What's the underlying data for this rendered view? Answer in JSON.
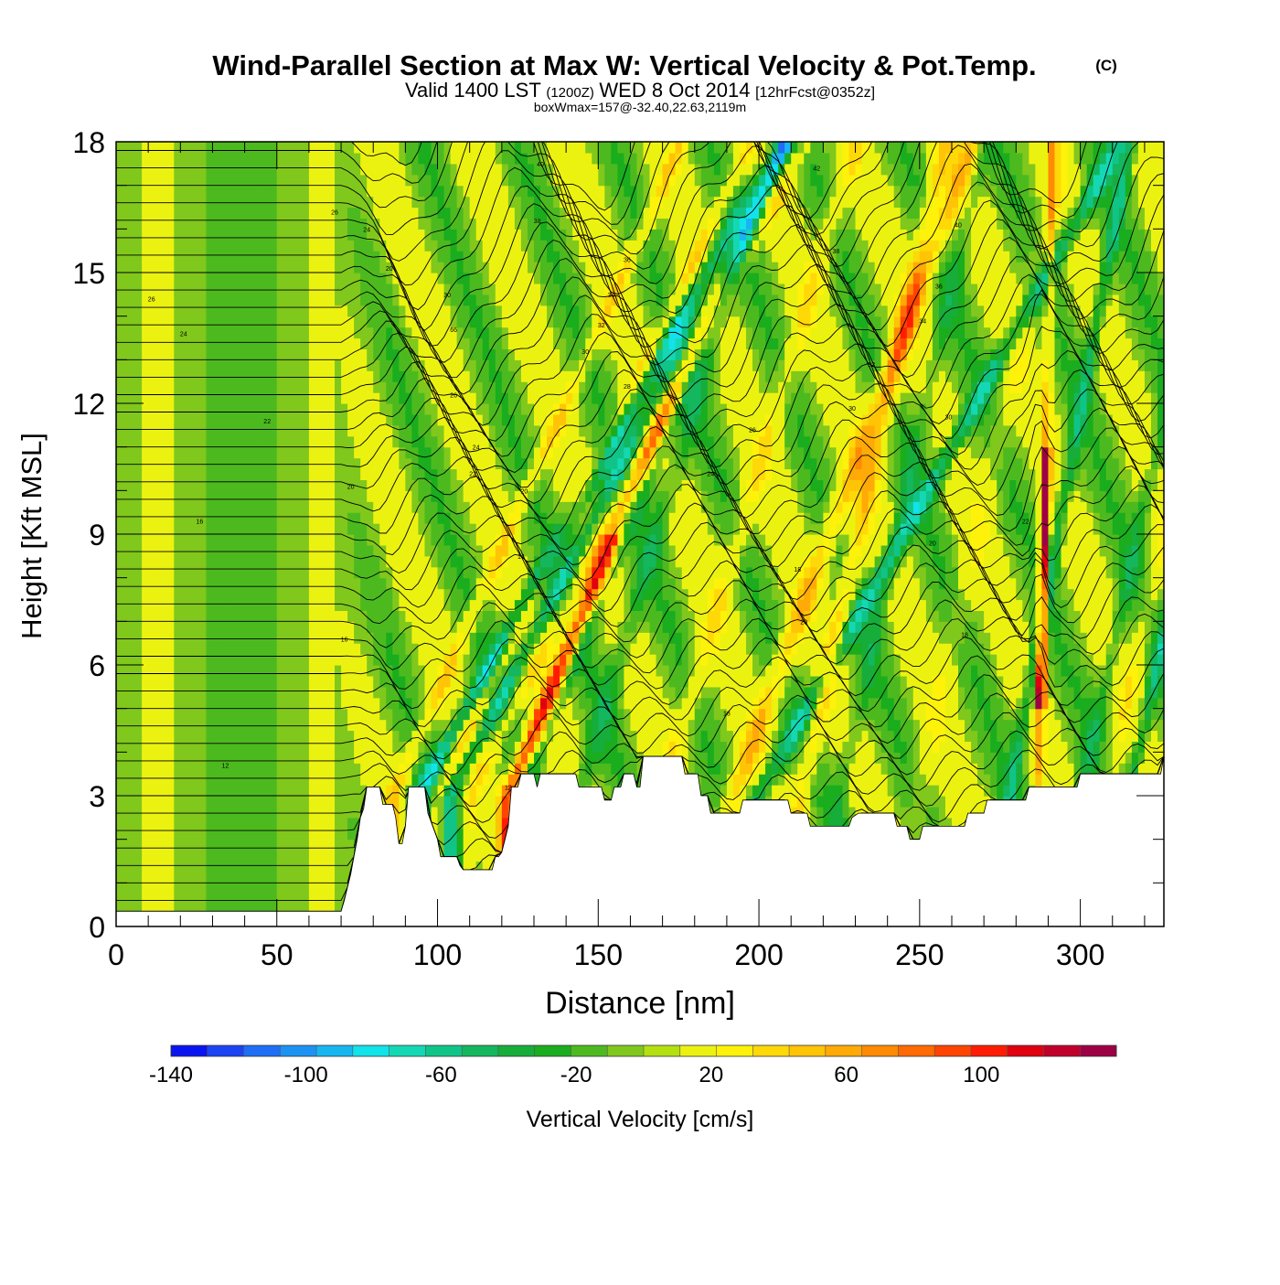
{
  "chart_data": {
    "type": "heatmap",
    "title": "Wind-Parallel Section at Max W: Vertical Velocity & Pot.Temp.",
    "title_mark": "(C)",
    "subtitle_parts": [
      "Valid 1400 LST",
      "(1200Z)",
      "WED 8 Oct 2014",
      "[12hrFcst@0352z]"
    ],
    "subtitle2": "boxWmax=157@-32.40,22.63,2119m",
    "xlabel": "Distance [nm]",
    "ylabel": "Height [Kft MSL]",
    "xlim": [
      0,
      326
    ],
    "ylim": [
      0,
      18
    ],
    "x_ticks": [
      0,
      50,
      100,
      150,
      200,
      250,
      300
    ],
    "y_ticks": [
      0,
      3,
      6,
      9,
      12,
      15,
      18
    ],
    "grid": false,
    "colorbar": {
      "label": "Vertical Velocity [cm/s]",
      "range": [
        -140,
        140
      ],
      "step": 10,
      "tick_labels": [
        "-140",
        "-100",
        "-60",
        "-20",
        "20",
        "60",
        "100"
      ],
      "tick_values": [
        -140,
        -100,
        -60,
        -20,
        20,
        60,
        100
      ],
      "colors": [
        "#0a14f0",
        "#1a44f4",
        "#1e6ef6",
        "#1c92f2",
        "#18b6f0",
        "#12e2ea",
        "#14d8b4",
        "#10c488",
        "#14b65e",
        "#16ad3a",
        "#1aad1e",
        "#4cba1e",
        "#80c81c",
        "#b4e010",
        "#ecf210",
        "#fff20a",
        "#ffd808",
        "#ffc406",
        "#ffaa06",
        "#ff8a04",
        "#ff6a02",
        "#ff4402",
        "#ff1c02",
        "#e00010",
        "#c0002a",
        "#9e0044"
      ]
    },
    "terrain": [
      [
        0,
        0.35
      ],
      [
        68,
        0.35
      ],
      [
        70,
        0.35
      ],
      [
        71,
        0.6
      ],
      [
        72,
        0.9
      ],
      [
        73,
        1.2
      ],
      [
        74,
        1.6
      ],
      [
        75,
        2.0
      ],
      [
        76,
        2.5
      ],
      [
        77,
        2.7
      ],
      [
        78,
        3.2
      ],
      [
        82,
        3.2
      ],
      [
        83,
        2.8
      ],
      [
        86,
        2.8
      ],
      [
        87,
        2.5
      ],
      [
        88,
        1.9
      ],
      [
        89,
        1.9
      ],
      [
        90,
        2.3
      ],
      [
        91,
        3.2
      ],
      [
        96,
        3.2
      ],
      [
        97,
        2.6
      ],
      [
        98,
        2.4
      ],
      [
        100,
        2.0
      ],
      [
        101,
        1.6
      ],
      [
        106,
        1.6
      ],
      [
        107,
        1.4
      ],
      [
        108,
        1.3
      ],
      [
        117,
        1.3
      ],
      [
        118,
        1.6
      ],
      [
        119,
        1.6
      ],
      [
        120,
        1.7
      ],
      [
        121,
        2.0
      ],
      [
        122,
        2.3
      ],
      [
        123,
        3.2
      ],
      [
        125,
        3.2
      ],
      [
        126,
        3.5
      ],
      [
        130,
        3.5
      ],
      [
        131,
        3.2
      ],
      [
        132,
        3.5
      ],
      [
        143,
        3.5
      ],
      [
        144,
        3.2
      ],
      [
        151,
        3.2
      ],
      [
        152,
        2.9
      ],
      [
        154,
        2.9
      ],
      [
        155,
        3.2
      ],
      [
        157,
        3.2
      ],
      [
        158,
        3.5
      ],
      [
        161,
        3.5
      ],
      [
        162,
        3.2
      ],
      [
        163,
        3.2
      ],
      [
        164,
        3.9
      ],
      [
        176,
        3.9
      ],
      [
        177,
        3.5
      ],
      [
        181,
        3.5
      ],
      [
        182,
        3.0
      ],
      [
        184,
        3.0
      ],
      [
        185,
        2.6
      ],
      [
        194,
        2.6
      ],
      [
        195,
        2.9
      ],
      [
        209,
        2.9
      ],
      [
        210,
        2.6
      ],
      [
        215,
        2.6
      ],
      [
        216,
        2.3
      ],
      [
        228,
        2.3
      ],
      [
        229,
        2.5
      ],
      [
        231,
        2.6
      ],
      [
        242,
        2.6
      ],
      [
        243,
        2.3
      ],
      [
        246,
        2.3
      ],
      [
        247,
        2.0
      ],
      [
        250,
        2.0
      ],
      [
        251,
        2.3
      ],
      [
        264,
        2.3
      ],
      [
        265,
        2.6
      ],
      [
        270,
        2.6
      ],
      [
        271,
        2.9
      ],
      [
        283,
        2.9
      ],
      [
        284,
        3.2
      ],
      [
        299,
        3.2
      ],
      [
        300,
        3.5
      ],
      [
        325,
        3.5
      ],
      [
        326,
        3.9
      ]
    ],
    "w_columns": [
      {
        "x": 86,
        "lean": 6.0,
        "amp": 35,
        "width": 2.4
      },
      {
        "x": 94,
        "lean": 7.5,
        "amp": -55,
        "width": 3.0
      },
      {
        "x": 100,
        "lean": 6.5,
        "amp": 30,
        "width": 2.2
      },
      {
        "x": 104,
        "lean": 7.0,
        "amp": -45,
        "width": 2.6
      },
      {
        "x": 110,
        "lean": 7.0,
        "amp": 25,
        "width": 2.5
      },
      {
        "x": 122,
        "lean": 5.5,
        "amp": 95,
        "width": 2.8
      },
      {
        "x": 126,
        "lean": 5.5,
        "amp": -25,
        "width": 2.2
      },
      {
        "x": 144,
        "lean": 4.0,
        "amp": -25,
        "width": 3.5
      },
      {
        "x": 170,
        "lean": 4.0,
        "amp": 25,
        "width": 3.5
      },
      {
        "x": 192,
        "lean": 5.0,
        "amp": 45,
        "width": 3.5
      },
      {
        "x": 200,
        "lean": 7.5,
        "amp": -50,
        "width": 3.2
      },
      {
        "x": 213,
        "lean": 3.0,
        "amp": 40,
        "width": 3.0
      },
      {
        "x": 225,
        "lean": 3.0,
        "amp": -20,
        "width": 3.0
      },
      {
        "x": 250,
        "lean": 3.0,
        "amp": 15,
        "width": 4.0
      },
      {
        "x": 278,
        "lean": 2.5,
        "amp": -40,
        "width": 2.2
      },
      {
        "x": 287,
        "lean": 0.3,
        "amp": 145,
        "width": 1.4
      },
      {
        "x": 300,
        "lean": 3.0,
        "amp": -25,
        "width": 2.5
      },
      {
        "x": 308,
        "lean": 3.0,
        "amp": 20,
        "width": 2.5
      },
      {
        "x": 315,
        "lean": 3.0,
        "amp": -40,
        "width": 2.0
      }
    ],
    "theta_contours": {
      "count": 46,
      "label_samples": [
        {
          "x": 68,
          "y": 16.4,
          "text": "26"
        },
        {
          "x": 78,
          "y": 16.0,
          "text": "24"
        },
        {
          "x": 85,
          "y": 15.1,
          "text": "20"
        },
        {
          "x": 103,
          "y": 14.5,
          "text": "30"
        },
        {
          "x": 105,
          "y": 13.7,
          "text": "66"
        },
        {
          "x": 132,
          "y": 17.5,
          "text": "40"
        },
        {
          "x": 131,
          "y": 16.2,
          "text": "38"
        },
        {
          "x": 159,
          "y": 15.3,
          "text": "36"
        },
        {
          "x": 154,
          "y": 14.5,
          "text": "34"
        },
        {
          "x": 151,
          "y": 13.8,
          "text": "32"
        },
        {
          "x": 146,
          "y": 13.2,
          "text": "30"
        },
        {
          "x": 159,
          "y": 12.4,
          "text": "28"
        },
        {
          "x": 105,
          "y": 12.2,
          "text": "26"
        },
        {
          "x": 112,
          "y": 11.0,
          "text": "24"
        },
        {
          "x": 111,
          "y": 10.4,
          "text": "22"
        },
        {
          "x": 127,
          "y": 10.0,
          "text": "20"
        },
        {
          "x": 126,
          "y": 8.5,
          "text": "14"
        },
        {
          "x": 73,
          "y": 10.1,
          "text": "20"
        },
        {
          "x": 47,
          "y": 11.6,
          "text": "22"
        },
        {
          "x": 11,
          "y": 14.4,
          "text": "26"
        },
        {
          "x": 21,
          "y": 13.6,
          "text": "24"
        },
        {
          "x": 26,
          "y": 9.3,
          "text": "16"
        },
        {
          "x": 71,
          "y": 6.6,
          "text": "16"
        },
        {
          "x": 34,
          "y": 3.7,
          "text": "12"
        },
        {
          "x": 122,
          "y": 3.2,
          "text": "12"
        },
        {
          "x": 218,
          "y": 17.4,
          "text": "42"
        },
        {
          "x": 262,
          "y": 16.1,
          "text": "40"
        },
        {
          "x": 224,
          "y": 15.5,
          "text": "38"
        },
        {
          "x": 256,
          "y": 14.7,
          "text": "36"
        },
        {
          "x": 251,
          "y": 13.9,
          "text": "34"
        },
        {
          "x": 235,
          "y": 12.9,
          "text": "32"
        },
        {
          "x": 229,
          "y": 11.9,
          "text": "30"
        },
        {
          "x": 259,
          "y": 11.7,
          "text": "30"
        },
        {
          "x": 198,
          "y": 11.4,
          "text": "26"
        },
        {
          "x": 185,
          "y": 10.4,
          "text": "24"
        },
        {
          "x": 283,
          "y": 9.3,
          "text": "22"
        },
        {
          "x": 254,
          "y": 8.8,
          "text": "20"
        },
        {
          "x": 212,
          "y": 8.2,
          "text": "18"
        },
        {
          "x": 214,
          "y": 7.0,
          "text": "20"
        },
        {
          "x": 264,
          "y": 6.7,
          "text": "18"
        },
        {
          "x": 190,
          "y": 4.9,
          "text": "18"
        }
      ]
    }
  }
}
